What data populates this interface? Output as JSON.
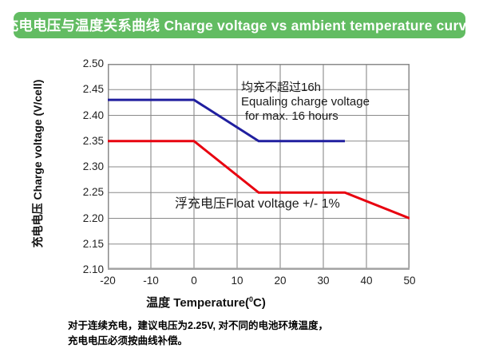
{
  "header": {
    "title": "充电电压与温度关系曲线 Charge voltage vs ambient temperature curve"
  },
  "colors": {
    "header_bg": "#62bc62",
    "grid": "#8a8a8a",
    "frame": "#8a8a8a",
    "axis": "#a3a3a3",
    "equalize_line": "#201f9f",
    "float_line": "#e8000f"
  },
  "chart_data": {
    "type": "line",
    "title": "充电电压与温度关系曲线 Charge voltage vs ambient temperature curve",
    "ylabel": "充电电压 Charge voltage (V/cell)",
    "xlabel_prefix": "温度 Temperature(",
    "xlabel_sup": "0",
    "xlabel_suffix": "C)",
    "xlim": [
      -20,
      50
    ],
    "ylim": [
      2.1,
      2.5
    ],
    "grid": true,
    "xtick_labels": [
      "-20",
      "-10",
      "0",
      "10",
      "20",
      "30",
      "40",
      "50"
    ],
    "ytick_labels": [
      "2.50",
      "2.45",
      "2.40",
      "2.35",
      "2.30",
      "2.25",
      "2.20",
      "2.15",
      "2.10"
    ],
    "series": [
      {
        "name": "Equalizing charge voltage",
        "color": "#201f9f",
        "points": [
          [
            -20,
            2.43
          ],
          [
            0,
            2.43
          ],
          [
            15,
            2.35
          ],
          [
            35,
            2.35
          ]
        ]
      },
      {
        "name": "Float voltage",
        "color": "#e8000f",
        "points": [
          [
            -20,
            2.35
          ],
          [
            0,
            2.35
          ],
          [
            15,
            2.25
          ],
          [
            35,
            2.25
          ],
          [
            50,
            2.2
          ]
        ]
      }
    ],
    "annotations": {
      "equalize": {
        "line1": "均充不超过16h",
        "line2": "Equaling charge voltage",
        "line3": "for max. 16 hours"
      },
      "float": {
        "text": "浮充电压Float voltage +/- 1%"
      }
    }
  },
  "footer": {
    "line1": "对于连续充电，建议电压为2.25V, 对不同的电池环境温度，",
    "line2": "充电电压必须按曲线补偿。"
  }
}
